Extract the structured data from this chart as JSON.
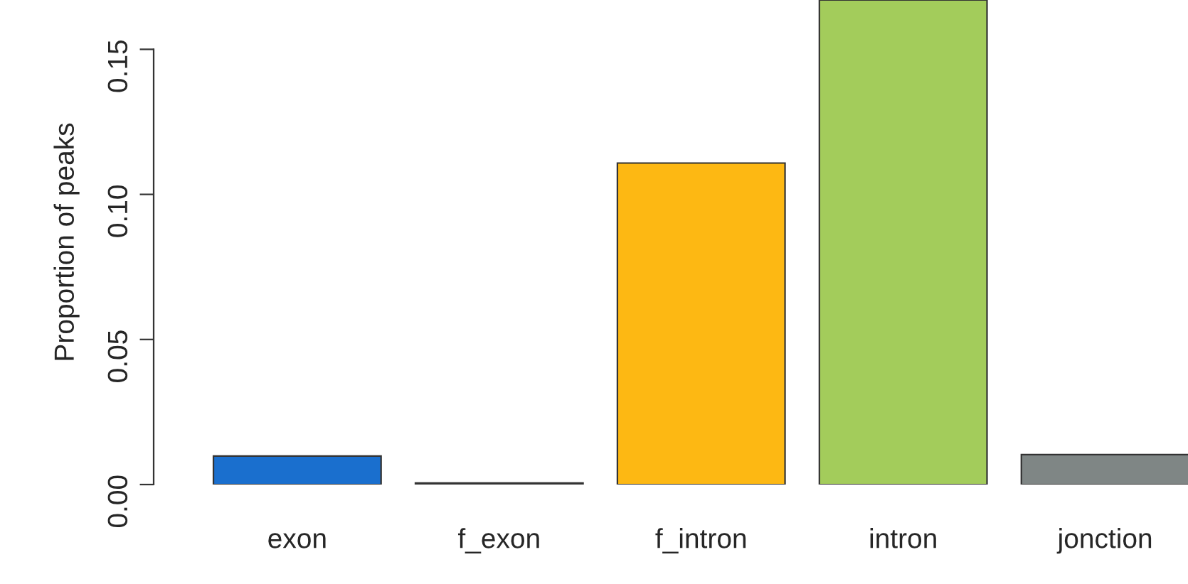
{
  "chart_data": {
    "type": "bar",
    "ylabel": "Proportion of peaks",
    "categories": [
      "exon",
      "f_exon",
      "f_intron",
      "intron",
      "jonction"
    ],
    "values": [
      0.0098,
      0.0005,
      0.1108,
      0.167,
      0.0103
    ],
    "colors": [
      "#1a6fce",
      "#000000",
      "#fdb813",
      "#a3cc5b",
      "#7f8685"
    ],
    "ylim": [
      0,
      0.167
    ],
    "yticks": [
      {
        "value": 0,
        "label": "0.00"
      },
      {
        "value": 0.05,
        "label": "0.05"
      },
      {
        "value": 0.1,
        "label": "0.10"
      },
      {
        "value": 0.15,
        "label": "0.15"
      }
    ],
    "grid": false
  }
}
